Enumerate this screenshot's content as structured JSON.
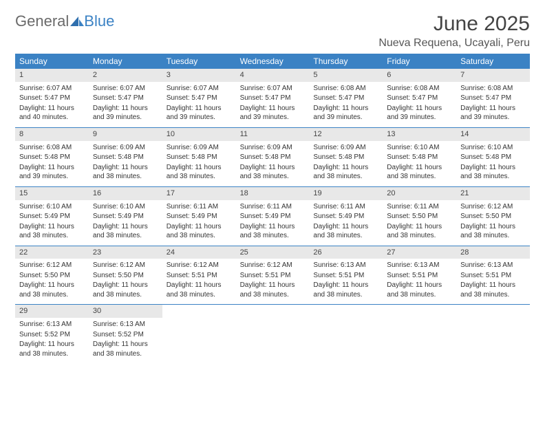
{
  "logo": {
    "text1": "General",
    "text2": "Blue"
  },
  "title": "June 2025",
  "location": "Nueva Requena, Ucayali, Peru",
  "colors": {
    "header_bg": "#3b82c4",
    "header_text": "#ffffff",
    "daynum_bg": "#e8e8e8",
    "body_text": "#333333",
    "logo_gray": "#6a6a6a",
    "logo_blue": "#3b82c4",
    "page_bg": "#ffffff"
  },
  "typography": {
    "title_fontsize": 30,
    "location_fontsize": 16,
    "weekday_fontsize": 12,
    "daynum_fontsize": 11,
    "body_fontsize": 10
  },
  "weekdays": [
    "Sunday",
    "Monday",
    "Tuesday",
    "Wednesday",
    "Thursday",
    "Friday",
    "Saturday"
  ],
  "weeks": [
    [
      {
        "num": "1",
        "sunrise": "Sunrise: 6:07 AM",
        "sunset": "Sunset: 5:47 PM",
        "daylight": "Daylight: 11 hours and 40 minutes."
      },
      {
        "num": "2",
        "sunrise": "Sunrise: 6:07 AM",
        "sunset": "Sunset: 5:47 PM",
        "daylight": "Daylight: 11 hours and 39 minutes."
      },
      {
        "num": "3",
        "sunrise": "Sunrise: 6:07 AM",
        "sunset": "Sunset: 5:47 PM",
        "daylight": "Daylight: 11 hours and 39 minutes."
      },
      {
        "num": "4",
        "sunrise": "Sunrise: 6:07 AM",
        "sunset": "Sunset: 5:47 PM",
        "daylight": "Daylight: 11 hours and 39 minutes."
      },
      {
        "num": "5",
        "sunrise": "Sunrise: 6:08 AM",
        "sunset": "Sunset: 5:47 PM",
        "daylight": "Daylight: 11 hours and 39 minutes."
      },
      {
        "num": "6",
        "sunrise": "Sunrise: 6:08 AM",
        "sunset": "Sunset: 5:47 PM",
        "daylight": "Daylight: 11 hours and 39 minutes."
      },
      {
        "num": "7",
        "sunrise": "Sunrise: 6:08 AM",
        "sunset": "Sunset: 5:47 PM",
        "daylight": "Daylight: 11 hours and 39 minutes."
      }
    ],
    [
      {
        "num": "8",
        "sunrise": "Sunrise: 6:08 AM",
        "sunset": "Sunset: 5:48 PM",
        "daylight": "Daylight: 11 hours and 39 minutes."
      },
      {
        "num": "9",
        "sunrise": "Sunrise: 6:09 AM",
        "sunset": "Sunset: 5:48 PM",
        "daylight": "Daylight: 11 hours and 38 minutes."
      },
      {
        "num": "10",
        "sunrise": "Sunrise: 6:09 AM",
        "sunset": "Sunset: 5:48 PM",
        "daylight": "Daylight: 11 hours and 38 minutes."
      },
      {
        "num": "11",
        "sunrise": "Sunrise: 6:09 AM",
        "sunset": "Sunset: 5:48 PM",
        "daylight": "Daylight: 11 hours and 38 minutes."
      },
      {
        "num": "12",
        "sunrise": "Sunrise: 6:09 AM",
        "sunset": "Sunset: 5:48 PM",
        "daylight": "Daylight: 11 hours and 38 minutes."
      },
      {
        "num": "13",
        "sunrise": "Sunrise: 6:10 AM",
        "sunset": "Sunset: 5:48 PM",
        "daylight": "Daylight: 11 hours and 38 minutes."
      },
      {
        "num": "14",
        "sunrise": "Sunrise: 6:10 AM",
        "sunset": "Sunset: 5:48 PM",
        "daylight": "Daylight: 11 hours and 38 minutes."
      }
    ],
    [
      {
        "num": "15",
        "sunrise": "Sunrise: 6:10 AM",
        "sunset": "Sunset: 5:49 PM",
        "daylight": "Daylight: 11 hours and 38 minutes."
      },
      {
        "num": "16",
        "sunrise": "Sunrise: 6:10 AM",
        "sunset": "Sunset: 5:49 PM",
        "daylight": "Daylight: 11 hours and 38 minutes."
      },
      {
        "num": "17",
        "sunrise": "Sunrise: 6:11 AM",
        "sunset": "Sunset: 5:49 PM",
        "daylight": "Daylight: 11 hours and 38 minutes."
      },
      {
        "num": "18",
        "sunrise": "Sunrise: 6:11 AM",
        "sunset": "Sunset: 5:49 PM",
        "daylight": "Daylight: 11 hours and 38 minutes."
      },
      {
        "num": "19",
        "sunrise": "Sunrise: 6:11 AM",
        "sunset": "Sunset: 5:49 PM",
        "daylight": "Daylight: 11 hours and 38 minutes."
      },
      {
        "num": "20",
        "sunrise": "Sunrise: 6:11 AM",
        "sunset": "Sunset: 5:50 PM",
        "daylight": "Daylight: 11 hours and 38 minutes."
      },
      {
        "num": "21",
        "sunrise": "Sunrise: 6:12 AM",
        "sunset": "Sunset: 5:50 PM",
        "daylight": "Daylight: 11 hours and 38 minutes."
      }
    ],
    [
      {
        "num": "22",
        "sunrise": "Sunrise: 6:12 AM",
        "sunset": "Sunset: 5:50 PM",
        "daylight": "Daylight: 11 hours and 38 minutes."
      },
      {
        "num": "23",
        "sunrise": "Sunrise: 6:12 AM",
        "sunset": "Sunset: 5:50 PM",
        "daylight": "Daylight: 11 hours and 38 minutes."
      },
      {
        "num": "24",
        "sunrise": "Sunrise: 6:12 AM",
        "sunset": "Sunset: 5:51 PM",
        "daylight": "Daylight: 11 hours and 38 minutes."
      },
      {
        "num": "25",
        "sunrise": "Sunrise: 6:12 AM",
        "sunset": "Sunset: 5:51 PM",
        "daylight": "Daylight: 11 hours and 38 minutes."
      },
      {
        "num": "26",
        "sunrise": "Sunrise: 6:13 AM",
        "sunset": "Sunset: 5:51 PM",
        "daylight": "Daylight: 11 hours and 38 minutes."
      },
      {
        "num": "27",
        "sunrise": "Sunrise: 6:13 AM",
        "sunset": "Sunset: 5:51 PM",
        "daylight": "Daylight: 11 hours and 38 minutes."
      },
      {
        "num": "28",
        "sunrise": "Sunrise: 6:13 AM",
        "sunset": "Sunset: 5:51 PM",
        "daylight": "Daylight: 11 hours and 38 minutes."
      }
    ],
    [
      {
        "num": "29",
        "sunrise": "Sunrise: 6:13 AM",
        "sunset": "Sunset: 5:52 PM",
        "daylight": "Daylight: 11 hours and 38 minutes."
      },
      {
        "num": "30",
        "sunrise": "Sunrise: 6:13 AM",
        "sunset": "Sunset: 5:52 PM",
        "daylight": "Daylight: 11 hours and 38 minutes."
      },
      {
        "empty": true
      },
      {
        "empty": true
      },
      {
        "empty": true
      },
      {
        "empty": true
      },
      {
        "empty": true
      }
    ]
  ]
}
